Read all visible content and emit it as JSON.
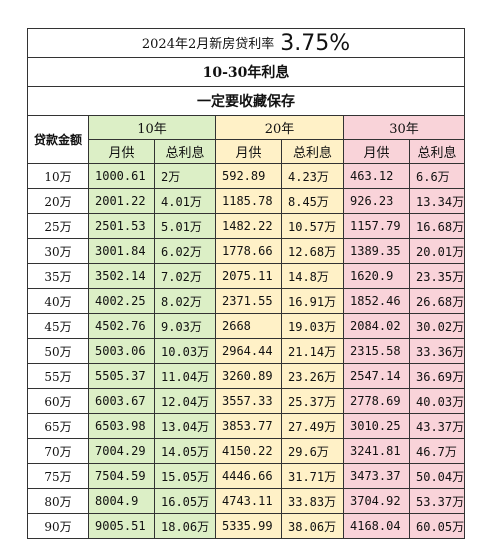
{
  "title": {
    "text": "2024年2月新房贷利率",
    "rate": "3.75%"
  },
  "subtitle1": "10-30年利息",
  "subtitle2": "一定要收藏保存",
  "headers": {
    "amount": "贷款金额",
    "groups": [
      "10年",
      "20年",
      "30年"
    ],
    "monthly": "月供",
    "interest": "总利息"
  },
  "colors": {
    "green": "#dcefc6",
    "yellow": "#fff1c7",
    "pink": "#f9d3d9"
  },
  "rows": [
    {
      "amount": "10万",
      "m10": "1000.61",
      "i10": "2万",
      "m20": "592.89",
      "i20": "4.23万",
      "m30": "463.12",
      "i30": "6.6万"
    },
    {
      "amount": "20万",
      "m10": "2001.22",
      "i10": "4.01万",
      "m20": "1185.78",
      "i20": "8.45万",
      "m30": "926.23",
      "i30": "13.34万"
    },
    {
      "amount": "25万",
      "m10": "2501.53",
      "i10": "5.01万",
      "m20": "1482.22",
      "i20": "10.57万",
      "m30": "1157.79",
      "i30": "16.68万"
    },
    {
      "amount": "30万",
      "m10": "3001.84",
      "i10": "6.02万",
      "m20": "1778.66",
      "i20": "12.68万",
      "m30": "1389.35",
      "i30": "20.01万"
    },
    {
      "amount": "35万",
      "m10": "3502.14",
      "i10": "7.02万",
      "m20": "2075.11",
      "i20": "14.8万",
      "m30": "1620.9",
      "i30": "23.35万"
    },
    {
      "amount": "40万",
      "m10": "4002.25",
      "i10": "8.02万",
      "m20": "2371.55",
      "i20": "16.91万",
      "m30": "1852.46",
      "i30": "26.68万"
    },
    {
      "amount": "45万",
      "m10": "4502.76",
      "i10": "9.03万",
      "m20": "2668",
      "i20": "19.03万",
      "m30": "2084.02",
      "i30": "30.02万"
    },
    {
      "amount": "50万",
      "m10": "5003.06",
      "i10": "10.03万",
      "m20": "2964.44",
      "i20": "21.14万",
      "m30": "2315.58",
      "i30": "33.36万"
    },
    {
      "amount": "55万",
      "m10": "5505.37",
      "i10": "11.04万",
      "m20": "3260.89",
      "i20": "23.26万",
      "m30": "2547.14",
      "i30": "36.69万"
    },
    {
      "amount": "60万",
      "m10": "6003.67",
      "i10": "12.04万",
      "m20": "3557.33",
      "i20": "25.37万",
      "m30": "2778.69",
      "i30": "40.03万"
    },
    {
      "amount": "65万",
      "m10": "6503.98",
      "i10": "13.04万",
      "m20": "3853.77",
      "i20": "27.49万",
      "m30": "3010.25",
      "i30": "43.37万"
    },
    {
      "amount": "70万",
      "m10": "7004.29",
      "i10": "14.05万",
      "m20": "4150.22",
      "i20": "29.6万",
      "m30": "3241.81",
      "i30": "46.7万"
    },
    {
      "amount": "75万",
      "m10": "7504.59",
      "i10": "15.05万",
      "m20": "4446.66",
      "i20": "31.71万",
      "m30": "3473.37",
      "i30": "50.04万"
    },
    {
      "amount": "80万",
      "m10": "8004.9",
      "i10": "16.05万",
      "m20": "4743.11",
      "i20": "33.83万",
      "m30": "3704.92",
      "i30": "53.37万"
    },
    {
      "amount": "90万",
      "m10": "9005.51",
      "i10": "18.06万",
      "m20": "5335.99",
      "i20": "38.06万",
      "m30": "4168.04",
      "i30": "60.05万"
    }
  ]
}
